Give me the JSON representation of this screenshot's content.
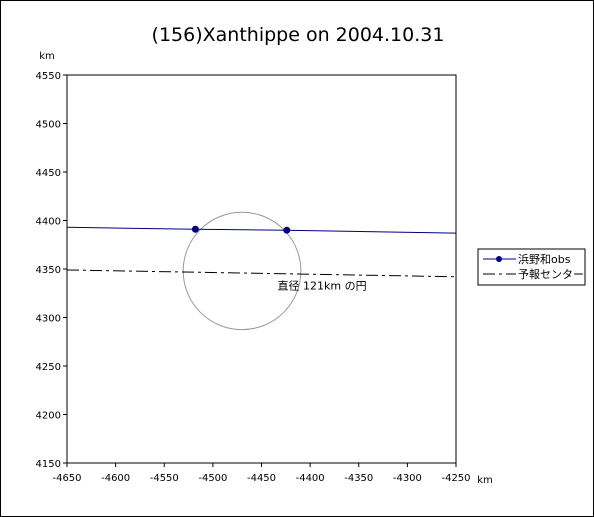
{
  "chart_data": {
    "type": "line",
    "title": "(156)Xanthippe on 2004.10.31",
    "xlabel": "km",
    "ylabel": "km",
    "xlim": [
      -4650,
      -4250
    ],
    "ylim": [
      4150,
      4550
    ],
    "x_ticks": [
      -4650,
      -4600,
      -4550,
      -4500,
      -4450,
      -4400,
      -4350,
      -4300,
      -4250
    ],
    "y_ticks": [
      4150,
      4200,
      4250,
      4300,
      4350,
      4400,
      4450,
      4500,
      4550
    ],
    "grid": false,
    "legend_position": "right",
    "series": [
      {
        "name": "浜野和obs",
        "color": "#000080",
        "style": "solid",
        "markers": [
          [
            -4518,
            4391
          ],
          [
            -4424,
            4390
          ]
        ],
        "points": [
          [
            -4650,
            4393
          ],
          [
            -4518,
            4391
          ],
          [
            -4424,
            4390
          ],
          [
            -4250,
            4387
          ]
        ]
      },
      {
        "name": "予報センター",
        "color": "#000000",
        "style": "dashdot",
        "markers": [],
        "points": [
          [
            -4650,
            4349
          ],
          [
            -4250,
            4342
          ]
        ]
      }
    ],
    "circle": {
      "cx": -4470,
      "cy": 4348,
      "diameter": 121,
      "color": "#999999"
    },
    "annotation": {
      "text": "直径 121km の円",
      "x": -4415,
      "y": 4335
    }
  }
}
